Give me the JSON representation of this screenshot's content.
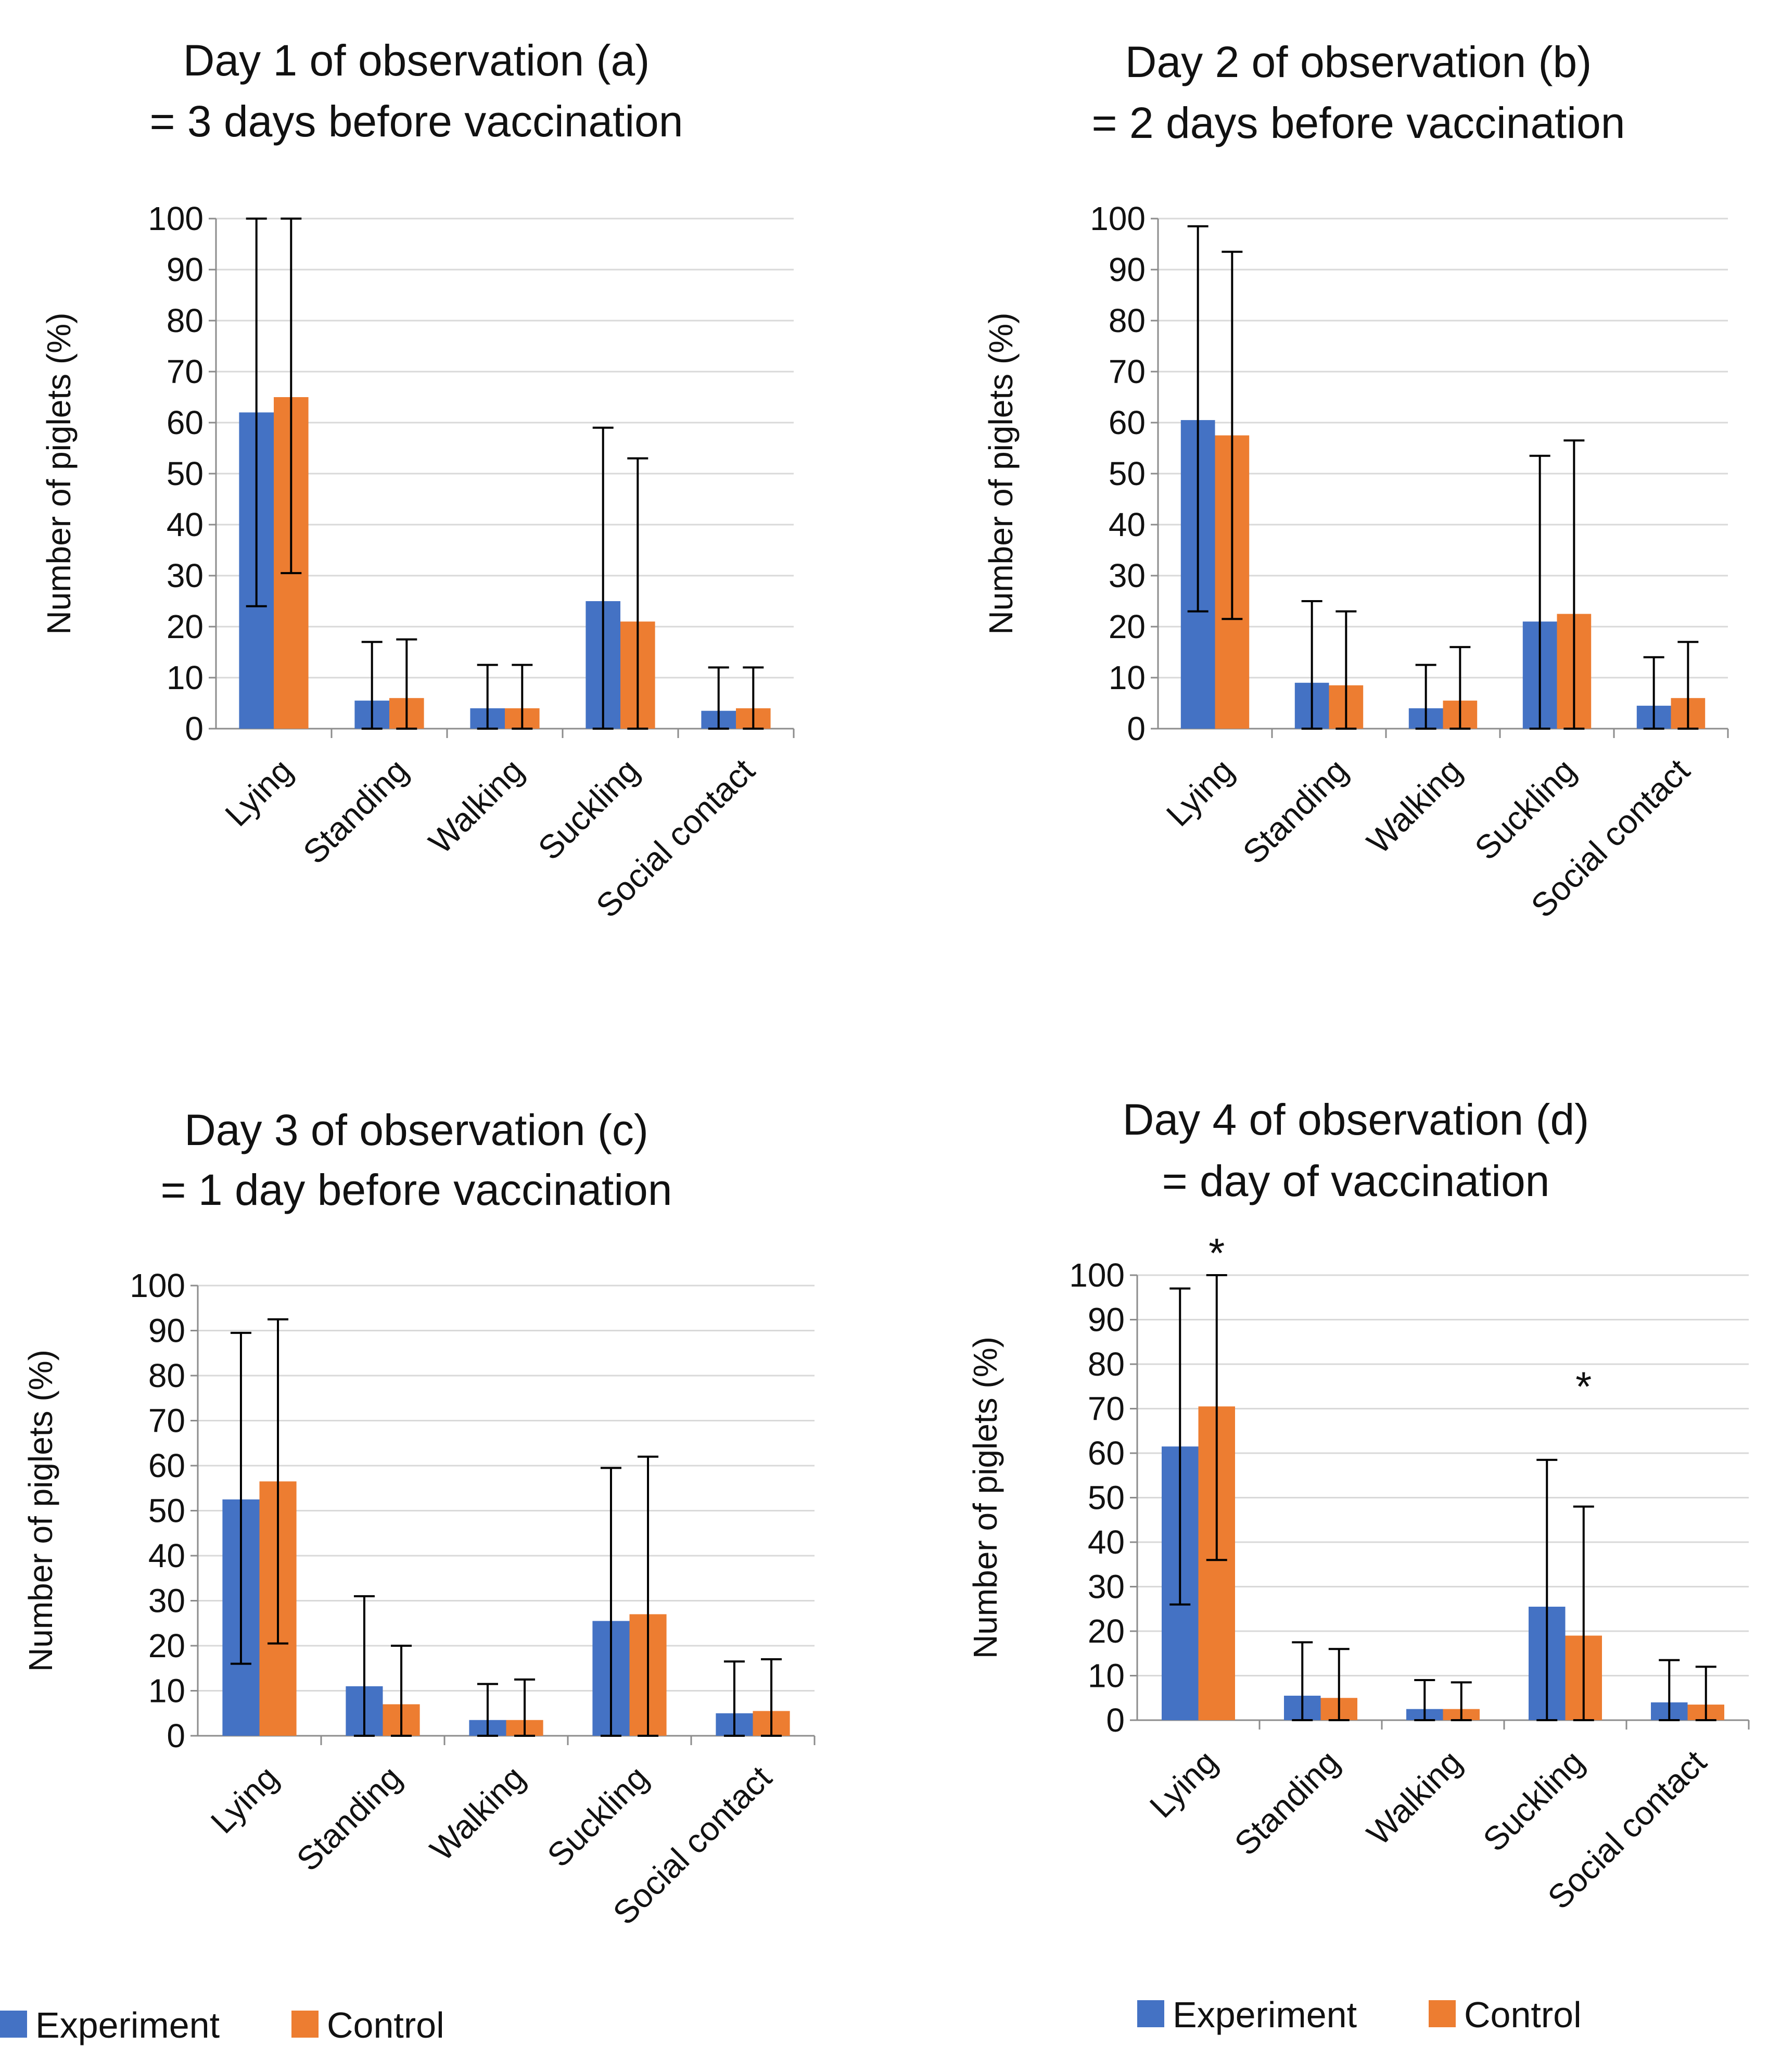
{
  "colors": {
    "experiment": "#4472C4",
    "control": "#ED7D31",
    "grid": "#D9D9D9",
    "axis": "#8C8C8C",
    "error": "#000000"
  },
  "chart_data": [
    {
      "type": "bar",
      "panel": "a",
      "title": "Day 1 of observation (a)",
      "subtitle": "= 3 days before vaccination",
      "ylabel": "Number of piglets (%)",
      "xlabel": "",
      "ylim": [
        0,
        100
      ],
      "yticks": [
        "0",
        "10",
        "20",
        "30",
        "40",
        "50",
        "60",
        "70",
        "80",
        "90",
        "100"
      ],
      "categories": [
        "Lying",
        "Standing",
        "Walking",
        "Suckling",
        "Social contact"
      ],
      "series": [
        {
          "name": "Experiment",
          "values": [
            62,
            5.5,
            4,
            25,
            3.5
          ],
          "err_low": [
            24,
            0,
            0,
            0,
            0
          ],
          "err_high": [
            100,
            17,
            12.5,
            59,
            12
          ]
        },
        {
          "name": "Control",
          "values": [
            65,
            6,
            4,
            21,
            4
          ],
          "err_low": [
            30.5,
            0,
            0,
            0,
            0
          ],
          "err_high": [
            100,
            17.5,
            12.5,
            53,
            12
          ]
        }
      ],
      "annotations": [],
      "legend": null
    },
    {
      "type": "bar",
      "panel": "b",
      "title": "Day 2 of observation (b)",
      "subtitle": "= 2 days before vaccination",
      "ylabel": "Number of piglets (%)",
      "xlabel": "",
      "ylim": [
        0,
        100
      ],
      "yticks": [
        "0",
        "10",
        "20",
        "30",
        "40",
        "50",
        "60",
        "70",
        "80",
        "90",
        "100"
      ],
      "categories": [
        "Lying",
        "Standing",
        "Walking",
        "Suckling",
        "Social contact"
      ],
      "series": [
        {
          "name": "Experiment",
          "values": [
            60.5,
            9,
            4,
            21,
            4.5
          ],
          "err_low": [
            23,
            0,
            0,
            0,
            0
          ],
          "err_high": [
            98.5,
            25,
            12.5,
            53.5,
            14
          ]
        },
        {
          "name": "Control",
          "values": [
            57.5,
            8.5,
            5.5,
            22.5,
            6
          ],
          "err_low": [
            21.5,
            0,
            0,
            0,
            0
          ],
          "err_high": [
            93.5,
            23,
            16,
            56.5,
            17
          ]
        }
      ],
      "annotations": [],
      "legend": null
    },
    {
      "type": "bar",
      "panel": "c",
      "title": "Day 3 of observation (c)",
      "subtitle": "= 1 day before vaccination",
      "ylabel": "Number of piglets (%)",
      "xlabel": "",
      "ylim": [
        0,
        100
      ],
      "yticks": [
        "0",
        "10",
        "20",
        "30",
        "40",
        "50",
        "60",
        "70",
        "80",
        "90",
        "100"
      ],
      "categories": [
        "Lying",
        "Standing",
        "Walking",
        "Suckling",
        "Social contact"
      ],
      "series": [
        {
          "name": "Experiment",
          "values": [
            52.5,
            11,
            3.5,
            25.5,
            5
          ],
          "err_low": [
            16,
            0,
            0,
            0,
            0
          ],
          "err_high": [
            89.5,
            31,
            11.5,
            59.5,
            16.5
          ]
        },
        {
          "name": "Control",
          "values": [
            56.5,
            7,
            3.5,
            27,
            5.5
          ],
          "err_low": [
            20.5,
            0,
            0,
            0,
            0
          ],
          "err_high": [
            92.5,
            20,
            12.5,
            62,
            17
          ]
        }
      ],
      "annotations": [],
      "legend": {
        "position": "bottom",
        "items": [
          "Experiment",
          "Control"
        ]
      }
    },
    {
      "type": "bar",
      "panel": "d",
      "title": "Day 4 of observation (d)",
      "subtitle": "= day of vaccination",
      "ylabel": "Number of piglets (%)",
      "xlabel": "",
      "ylim": [
        0,
        100
      ],
      "yticks": [
        "0",
        "10",
        "20",
        "30",
        "40",
        "50",
        "60",
        "70",
        "80",
        "90",
        "100"
      ],
      "categories": [
        "Lying",
        "Standing",
        "Walking",
        "Suckling",
        "Social contact"
      ],
      "series": [
        {
          "name": "Experiment",
          "values": [
            61.5,
            5.5,
            2.5,
            25.5,
            4
          ],
          "err_low": [
            26,
            0,
            0,
            0,
            0
          ],
          "err_high": [
            97,
            17.5,
            9,
            58.5,
            13.5
          ]
        },
        {
          "name": "Control",
          "values": [
            70.5,
            5,
            2.5,
            19,
            3.5
          ],
          "err_low": [
            36,
            0,
            0,
            0,
            0
          ],
          "err_high": [
            100,
            16,
            8.5,
            48,
            12
          ]
        }
      ],
      "annotations": [
        {
          "text": "*",
          "category": "Lying",
          "series": "Control",
          "value": 107
        },
        {
          "text": "*",
          "category": "Suckling",
          "series": "Control",
          "value": 77
        }
      ],
      "legend": {
        "position": "bottom",
        "items": [
          "Experiment",
          "Control"
        ]
      }
    }
  ]
}
